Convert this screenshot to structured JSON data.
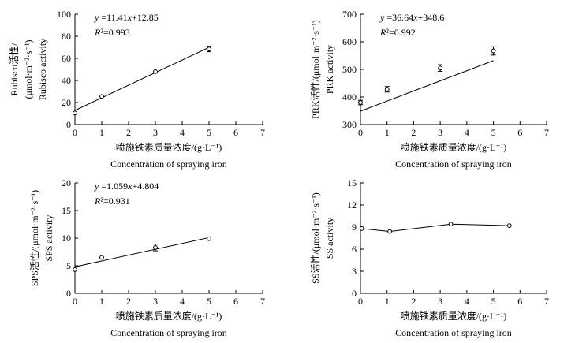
{
  "chart_data": [
    {
      "type": "scatter",
      "ylabel": [
        "Rubisco活性/",
        "(μmol·m⁻²·s⁻¹)",
        "Rubisco activity"
      ],
      "xlabel": [
        "喷施铁素质量浓度/(g·L⁻¹)",
        "Concentration of spraying iron"
      ],
      "xlim": [
        0,
        7
      ],
      "ylim": [
        0,
        100
      ],
      "xticks": [
        0,
        1,
        2,
        3,
        4,
        5,
        6,
        7
      ],
      "yticks": [
        0,
        20,
        40,
        60,
        80,
        100
      ],
      "points": [
        {
          "x": 0,
          "y": 10.5,
          "err": 0
        },
        {
          "x": 1,
          "y": 25.5,
          "err": 0
        },
        {
          "x": 3,
          "y": 48,
          "err": 0
        },
        {
          "x": 5,
          "y": 68.5,
          "err": 2.5
        }
      ],
      "fit": {
        "slope": 11.41,
        "intercept": 12.85,
        "equation": "y =11.41x+12.85",
        "r2": "R²=0.993"
      }
    },
    {
      "type": "scatter",
      "ylabel": [
        "PRK活性/(μmol·m⁻²·s⁻¹)",
        "PRK activity"
      ],
      "xlabel": [
        "喷施铁素质量浓度/(g·L⁻¹)",
        "Concentration of spraying iron"
      ],
      "xlim": [
        0,
        7
      ],
      "ylim": [
        300,
        700
      ],
      "xticks": [
        0,
        1,
        2,
        3,
        4,
        5,
        6,
        7
      ],
      "yticks": [
        300,
        400,
        500,
        600,
        700
      ],
      "points": [
        {
          "x": 0,
          "y": 380,
          "err": 8
        },
        {
          "x": 1,
          "y": 428,
          "err": 10
        },
        {
          "x": 3,
          "y": 505,
          "err": 12
        },
        {
          "x": 5,
          "y": 567,
          "err": 15
        }
      ],
      "fit": {
        "slope": 36.64,
        "intercept": 348.6,
        "equation": "y =36.64x+348.6",
        "r2": "R²=0.992"
      }
    },
    {
      "type": "scatter",
      "ylabel": [
        "SPS活性/(μmol·m⁻²·s⁻¹)",
        "SPS activity"
      ],
      "xlabel": [
        "喷施铁素质量浓度/(g·L⁻¹)",
        "Concentration of spraying iron"
      ],
      "xlim": [
        0,
        7
      ],
      "ylim": [
        0,
        20
      ],
      "xticks": [
        0,
        1,
        2,
        3,
        4,
        5,
        6,
        7
      ],
      "yticks": [
        0,
        5,
        10,
        15,
        20
      ],
      "points": [
        {
          "x": 0,
          "y": 4.3,
          "err": 0
        },
        {
          "x": 1,
          "y": 6.5,
          "err": 0
        },
        {
          "x": 3,
          "y": 8.3,
          "err": 0.6
        },
        {
          "x": 5,
          "y": 9.9,
          "err": 0
        }
      ],
      "fit": {
        "slope": 1.059,
        "intercept": 4.804,
        "equation": "y =1.059x+4.804",
        "r2": "R²=0.931"
      }
    },
    {
      "type": "line",
      "ylabel": [
        "SS活性/(μmol·m⁻²·s⁻¹)",
        "SS activity"
      ],
      "xlabel": [
        "喷施铁素质量浓度/(g·L⁻¹)",
        "Concentration of spraying iron"
      ],
      "xlim": [
        0,
        7
      ],
      "ylim": [
        0,
        15
      ],
      "xticks": [
        0,
        1,
        2,
        3,
        4,
        5,
        6,
        7
      ],
      "yticks": [
        0,
        3,
        6,
        9,
        12,
        15
      ],
      "points": [
        {
          "x": 0.05,
          "y": 8.8,
          "err": 0
        },
        {
          "x": 1.1,
          "y": 8.4,
          "err": 0
        },
        {
          "x": 3.4,
          "y": 9.4,
          "err": 0
        },
        {
          "x": 5.6,
          "y": 9.2,
          "err": 0
        }
      ],
      "fit": null
    }
  ]
}
